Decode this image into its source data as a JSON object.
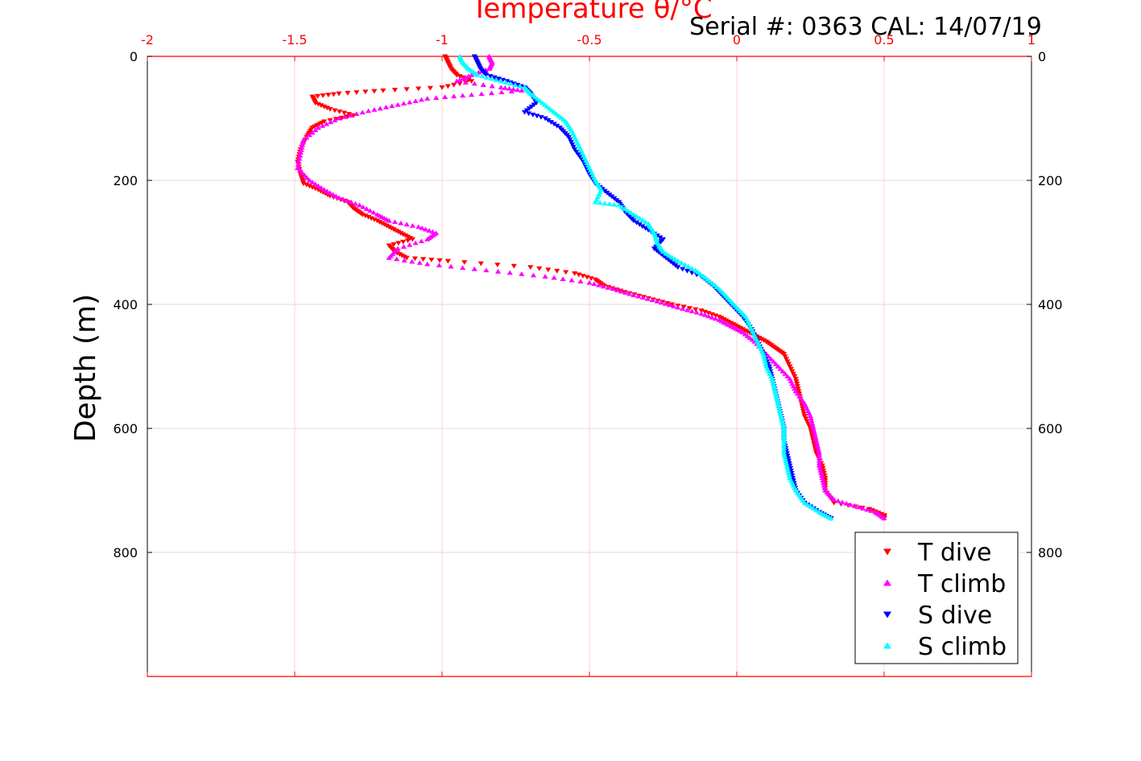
{
  "chart_data": {
    "type": "scatter",
    "title": "Temperature θ/°C",
    "subtitle": "Serial #: 0363  CAL: 14/07/19",
    "xlabel": "Temperature θ/°C",
    "ylabel": "Depth (m)",
    "xlim": [
      -2,
      1
    ],
    "ylim": [
      0,
      1000
    ],
    "y_reversed": true,
    "grid": true,
    "legend_position": "bottom-right",
    "x_ticks": [
      "-2",
      "-1.5",
      "-1",
      "-0.5",
      "0",
      "0.5",
      "1"
    ],
    "y_ticks": [
      "0",
      "200",
      "400",
      "600",
      "800"
    ],
    "colors": {
      "axis_top": "#ff0000",
      "grid_vertical": "#ffd0d0",
      "grid_horizontal": "#dcdcdc"
    },
    "series": [
      {
        "name": "T dive",
        "marker": "triangle-down",
        "color": "#ff0000",
        "points": [
          [
            -0.99,
            0
          ],
          [
            -0.98,
            10
          ],
          [
            -0.97,
            20
          ],
          [
            -0.95,
            30
          ],
          [
            -0.9,
            40
          ],
          [
            -1.0,
            50
          ],
          [
            -1.2,
            55
          ],
          [
            -1.35,
            60
          ],
          [
            -1.44,
            65
          ],
          [
            -1.43,
            75
          ],
          [
            -1.38,
            85
          ],
          [
            -1.3,
            95
          ],
          [
            -1.4,
            105
          ],
          [
            -1.44,
            115
          ],
          [
            -1.46,
            130
          ],
          [
            -1.48,
            150
          ],
          [
            -1.49,
            170
          ],
          [
            -1.48,
            190
          ],
          [
            -1.47,
            205
          ],
          [
            -1.42,
            215
          ],
          [
            -1.38,
            225
          ],
          [
            -1.32,
            235
          ],
          [
            -1.3,
            245
          ],
          [
            -1.27,
            255
          ],
          [
            -1.22,
            265
          ],
          [
            -1.18,
            275
          ],
          [
            -1.14,
            285
          ],
          [
            -1.1,
            295
          ],
          [
            -1.18,
            305
          ],
          [
            -1.16,
            315
          ],
          [
            -1.12,
            325
          ],
          [
            -0.98,
            330
          ],
          [
            -0.7,
            340
          ],
          [
            -0.55,
            350
          ],
          [
            -0.48,
            360
          ],
          [
            -0.45,
            370
          ],
          [
            -0.38,
            380
          ],
          [
            -0.3,
            390
          ],
          [
            -0.22,
            400
          ],
          [
            -0.12,
            410
          ],
          [
            -0.06,
            420
          ],
          [
            -0.02,
            430
          ],
          [
            0.02,
            440
          ],
          [
            0.06,
            450
          ],
          [
            0.1,
            460
          ],
          [
            0.13,
            470
          ],
          [
            0.16,
            480
          ],
          [
            0.18,
            500
          ],
          [
            0.2,
            520
          ],
          [
            0.21,
            540
          ],
          [
            0.22,
            560
          ],
          [
            0.23,
            580
          ],
          [
            0.25,
            600
          ],
          [
            0.26,
            620
          ],
          [
            0.27,
            640
          ],
          [
            0.29,
            660
          ],
          [
            0.3,
            680
          ],
          [
            0.3,
            700
          ],
          [
            0.33,
            720
          ],
          [
            0.45,
            730
          ],
          [
            0.5,
            740
          ],
          [
            0.5,
            745
          ]
        ]
      },
      {
        "name": "T climb",
        "marker": "triangle-up",
        "color": "#ff00ff",
        "points": [
          [
            -0.84,
            0
          ],
          [
            -0.83,
            10
          ],
          [
            -0.84,
            20
          ],
          [
            -0.9,
            30
          ],
          [
            -0.95,
            40
          ],
          [
            -0.8,
            50
          ],
          [
            -0.73,
            55
          ],
          [
            -0.9,
            62
          ],
          [
            -1.05,
            68
          ],
          [
            -1.15,
            78
          ],
          [
            -1.25,
            88
          ],
          [
            -1.35,
            100
          ],
          [
            -1.42,
            115
          ],
          [
            -1.47,
            135
          ],
          [
            -1.48,
            155
          ],
          [
            -1.49,
            180
          ],
          [
            -1.45,
            200
          ],
          [
            -1.4,
            215
          ],
          [
            -1.35,
            228
          ],
          [
            -1.28,
            240
          ],
          [
            -1.22,
            255
          ],
          [
            -1.18,
            265
          ],
          [
            -1.08,
            275
          ],
          [
            -1.02,
            285
          ],
          [
            -1.05,
            295
          ],
          [
            -1.15,
            310
          ],
          [
            -1.18,
            325
          ],
          [
            -1.05,
            335
          ],
          [
            -0.85,
            345
          ],
          [
            -0.65,
            355
          ],
          [
            -0.5,
            365
          ],
          [
            -0.42,
            375
          ],
          [
            -0.35,
            385
          ],
          [
            -0.27,
            395
          ],
          [
            -0.2,
            405
          ],
          [
            -0.12,
            415
          ],
          [
            -0.06,
            425
          ],
          [
            -0.02,
            435
          ],
          [
            0.02,
            445
          ],
          [
            0.06,
            460
          ],
          [
            0.1,
            480
          ],
          [
            0.14,
            500
          ],
          [
            0.18,
            520
          ],
          [
            0.2,
            540
          ],
          [
            0.23,
            560
          ],
          [
            0.25,
            580
          ],
          [
            0.26,
            600
          ],
          [
            0.27,
            620
          ],
          [
            0.28,
            640
          ],
          [
            0.28,
            660
          ],
          [
            0.29,
            680
          ],
          [
            0.3,
            700
          ],
          [
            0.33,
            715
          ],
          [
            0.4,
            725
          ],
          [
            0.47,
            735
          ],
          [
            0.5,
            745
          ]
        ]
      },
      {
        "name": "S dive",
        "marker": "triangle-down",
        "color": "#0000ff",
        "points": [
          [
            -0.89,
            0
          ],
          [
            -0.88,
            10
          ],
          [
            -0.87,
            20
          ],
          [
            -0.85,
            30
          ],
          [
            -0.78,
            40
          ],
          [
            -0.72,
            50
          ],
          [
            -0.7,
            60
          ],
          [
            -0.68,
            75
          ],
          [
            -0.72,
            90
          ],
          [
            -0.65,
            100
          ],
          [
            -0.6,
            115
          ],
          [
            -0.57,
            130
          ],
          [
            -0.55,
            150
          ],
          [
            -0.52,
            170
          ],
          [
            -0.5,
            190
          ],
          [
            -0.48,
            205
          ],
          [
            -0.44,
            220
          ],
          [
            -0.4,
            235
          ],
          [
            -0.38,
            250
          ],
          [
            -0.35,
            265
          ],
          [
            -0.3,
            280
          ],
          [
            -0.25,
            295
          ],
          [
            -0.28,
            310
          ],
          [
            -0.24,
            325
          ],
          [
            -0.2,
            340
          ],
          [
            -0.12,
            355
          ],
          [
            -0.08,
            370
          ],
          [
            -0.05,
            385
          ],
          [
            -0.02,
            400
          ],
          [
            0.02,
            420
          ],
          [
            0.05,
            440
          ],
          [
            0.07,
            460
          ],
          [
            0.09,
            480
          ],
          [
            0.11,
            500
          ],
          [
            0.12,
            520
          ],
          [
            0.13,
            540
          ],
          [
            0.14,
            560
          ],
          [
            0.15,
            580
          ],
          [
            0.16,
            600
          ],
          [
            0.16,
            620
          ],
          [
            0.17,
            640
          ],
          [
            0.18,
            660
          ],
          [
            0.19,
            680
          ],
          [
            0.2,
            700
          ],
          [
            0.23,
            720
          ],
          [
            0.28,
            735
          ],
          [
            0.32,
            745
          ]
        ]
      },
      {
        "name": "S climb",
        "marker": "triangle-up",
        "color": "#00ffff",
        "points": [
          [
            -0.94,
            0
          ],
          [
            -0.93,
            10
          ],
          [
            -0.91,
            20
          ],
          [
            -0.88,
            30
          ],
          [
            -0.8,
            40
          ],
          [
            -0.72,
            50
          ],
          [
            -0.7,
            60
          ],
          [
            -0.66,
            75
          ],
          [
            -0.62,
            90
          ],
          [
            -0.58,
            105
          ],
          [
            -0.56,
            120
          ],
          [
            -0.54,
            140
          ],
          [
            -0.52,
            160
          ],
          [
            -0.5,
            180
          ],
          [
            -0.48,
            200
          ],
          [
            -0.46,
            215
          ],
          [
            -0.48,
            235
          ],
          [
            -0.4,
            240
          ],
          [
            -0.35,
            255
          ],
          [
            -0.3,
            270
          ],
          [
            -0.28,
            285
          ],
          [
            -0.27,
            300
          ],
          [
            -0.25,
            315
          ],
          [
            -0.2,
            330
          ],
          [
            -0.14,
            345
          ],
          [
            -0.1,
            360
          ],
          [
            -0.06,
            375
          ],
          [
            -0.03,
            390
          ],
          [
            0.0,
            405
          ],
          [
            0.03,
            420
          ],
          [
            0.05,
            440
          ],
          [
            0.07,
            460
          ],
          [
            0.09,
            480
          ],
          [
            0.1,
            500
          ],
          [
            0.12,
            520
          ],
          [
            0.13,
            540
          ],
          [
            0.14,
            560
          ],
          [
            0.15,
            580
          ],
          [
            0.16,
            600
          ],
          [
            0.16,
            620
          ],
          [
            0.16,
            640
          ],
          [
            0.17,
            660
          ],
          [
            0.18,
            680
          ],
          [
            0.2,
            700
          ],
          [
            0.23,
            720
          ],
          [
            0.28,
            735
          ],
          [
            0.32,
            745
          ]
        ]
      }
    ]
  }
}
